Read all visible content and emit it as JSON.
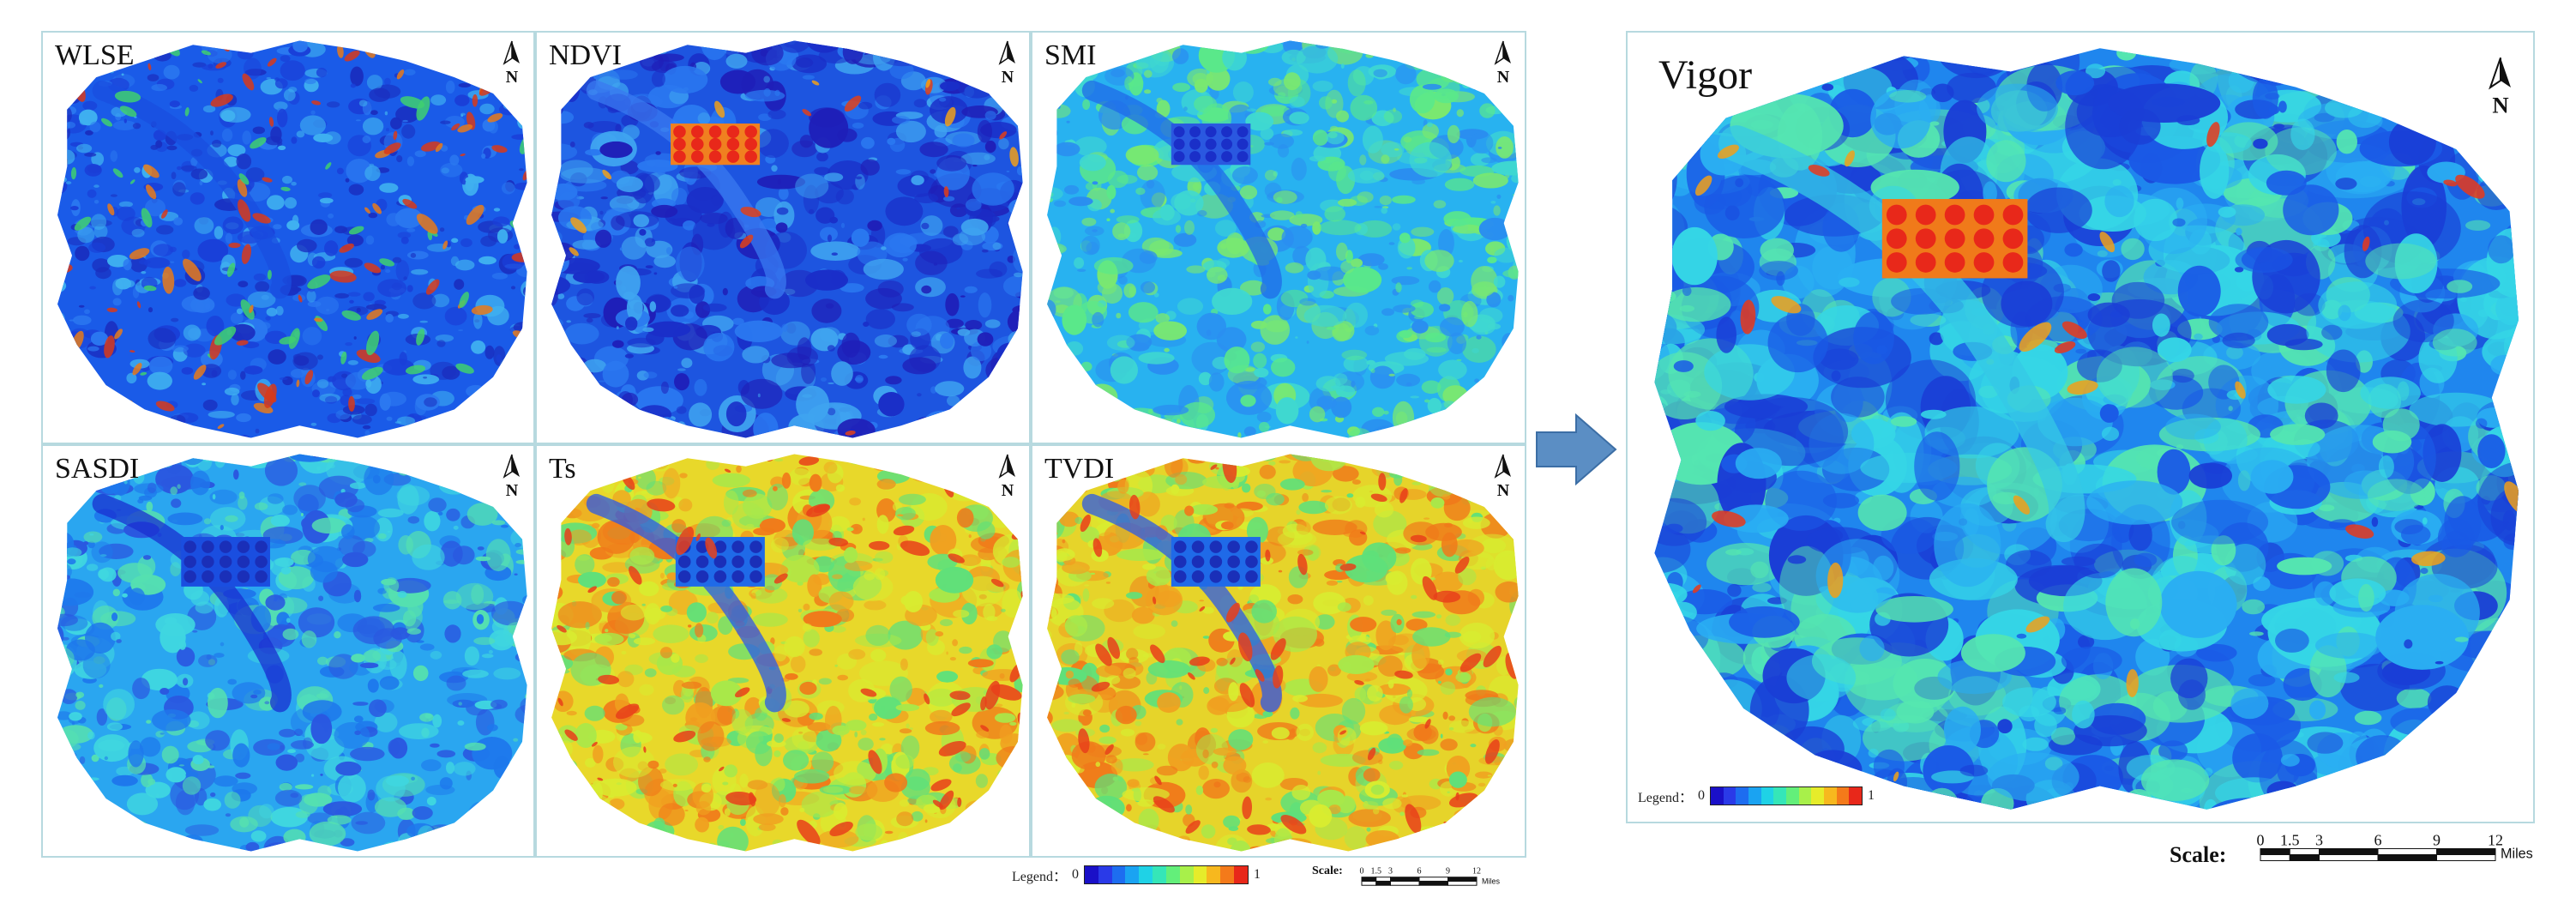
{
  "panels": [
    {
      "id": "wlse",
      "label": "WLSE",
      "palette": "wlse"
    },
    {
      "id": "ndvi",
      "label": "NDVI",
      "palette": "ndvi"
    },
    {
      "id": "smi",
      "label": "SMI",
      "palette": "smi"
    },
    {
      "id": "sasdi",
      "label": "SASDI",
      "palette": "sasdi"
    },
    {
      "id": "ts",
      "label": "Ts",
      "palette": "ts"
    },
    {
      "id": "tvdi",
      "label": "TVDI",
      "palette": "tvdi"
    }
  ],
  "result": {
    "label": "Vigor"
  },
  "north_symbol": "N",
  "legend": {
    "label": "Legend：",
    "min": "0",
    "max": "1",
    "colors": [
      "#1a10c8",
      "#2a3ae8",
      "#1d6df0",
      "#1aa3f2",
      "#1fd2e6",
      "#35e6b8",
      "#63ef7a",
      "#a8f04a",
      "#e6ec2a",
      "#f7b81e",
      "#f47a1a",
      "#e8281a"
    ]
  },
  "small_legend": {
    "label": "Legend：",
    "min": "0",
    "max": "1"
  },
  "big_scale": {
    "title": "Scale:",
    "ticks": [
      "0",
      "1.5",
      "3",
      "6",
      "9",
      "12"
    ],
    "unit": "Miles"
  },
  "small_scale": {
    "title": "Scale:",
    "ticks": [
      "0",
      "1.5",
      "3",
      "6",
      "9",
      "12"
    ],
    "unit": "Miles"
  }
}
